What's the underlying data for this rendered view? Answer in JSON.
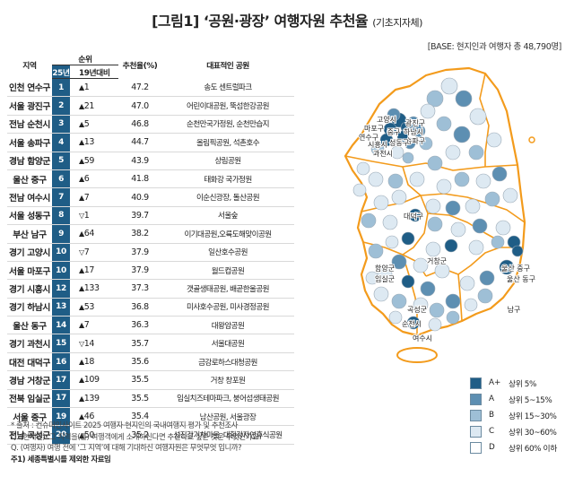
{
  "title": "[그림1] ‘공원·광장’ 여행자원 추천율",
  "title_sub": "(기초지자체)",
  "base": "[BASE: 현지인과 여행자 총 48,790명]",
  "colors": {
    "A_plus": "#1f5d86",
    "A": "#5d8fb2",
    "B": "#9ebfd6",
    "C": "#dde9f2",
    "D": "#ffffff",
    "province_border": "#f39b1c",
    "rank_bg": "#1f5d86"
  },
  "chart_data": {
    "type": "table",
    "columns": {
      "region": "지역",
      "rank_group": "순위",
      "rank_25": "25년",
      "change_19": "19년대비",
      "rate": "추천율(%)",
      "spot": "대표적인 공원"
    },
    "rows": [
      {
        "region": "인천 연수구",
        "rank": "1",
        "change": "1",
        "dir": "up",
        "rate": "47.2",
        "spot": "송도 센트럴파크"
      },
      {
        "region": "서울 광진구",
        "rank": "2",
        "change": "21",
        "dir": "up",
        "rate": "47.0",
        "spot": "어린이대공원, 뚝섬한강공원"
      },
      {
        "region": "전남 순천시",
        "rank": "3",
        "change": "5",
        "dir": "up",
        "rate": "46.8",
        "spot": "순천만국가정원, 순천만습지"
      },
      {
        "region": "서울 송파구",
        "rank": "4",
        "change": "13",
        "dir": "up",
        "rate": "44.7",
        "spot": "올림픽공원, 석촌호수"
      },
      {
        "region": "경남 함양군",
        "rank": "5",
        "change": "59",
        "dir": "up",
        "rate": "43.9",
        "spot": "상림공원"
      },
      {
        "region": "울산 중구",
        "rank": "6",
        "change": "6",
        "dir": "up",
        "rate": "41.8",
        "spot": "태화강 국가정원"
      },
      {
        "region": "전남 여수시",
        "rank": "7",
        "change": "7",
        "dir": "up",
        "rate": "40.9",
        "spot": "이순신광장, 돌산공원"
      },
      {
        "region": "서울 성동구",
        "rank": "8",
        "change": "1",
        "dir": "down",
        "rate": "39.7",
        "spot": "서울숲"
      },
      {
        "region": "부산 남구",
        "rank": "9",
        "change": "64",
        "dir": "up",
        "rate": "38.2",
        "spot": "이기대공원,오륙도해맞이공원"
      },
      {
        "region": "경기 고양시",
        "rank": "10",
        "change": "7",
        "dir": "down",
        "rate": "37.9",
        "spot": "일산호수공원"
      },
      {
        "region": "서울 마포구",
        "rank": "10",
        "change": "17",
        "dir": "up",
        "rate": "37.9",
        "spot": "월드컵공원"
      },
      {
        "region": "경기 시흥시",
        "rank": "12",
        "change": "133",
        "dir": "up",
        "rate": "37.3",
        "spot": "갯골생태공원, 배곧한울공원"
      },
      {
        "region": "경기 하남시",
        "rank": "13",
        "change": "53",
        "dir": "up",
        "rate": "36.8",
        "spot": "미사호수공원, 미사경정공원"
      },
      {
        "region": "울산 동구",
        "rank": "14",
        "change": "7",
        "dir": "up",
        "rate": "36.3",
        "spot": "대왕암공원"
      },
      {
        "region": "경기 과천시",
        "rank": "15",
        "change": "14",
        "dir": "down",
        "rate": "35.7",
        "spot": "서울대공원"
      },
      {
        "region": "대전 대덕구",
        "rank": "16",
        "change": "18",
        "dir": "up",
        "rate": "35.6",
        "spot": "금강로하스대청공원"
      },
      {
        "region": "경남 거창군",
        "rank": "17",
        "change": "109",
        "dir": "up",
        "rate": "35.5",
        "spot": "거창 창포원"
      },
      {
        "region": "전북 임실군",
        "rank": "17",
        "change": "139",
        "dir": "up",
        "rate": "35.5",
        "spot": "임실치즈테마파크, 붕어섬생태공원"
      },
      {
        "region": "서울 중구",
        "rank": "19",
        "change": "46",
        "dir": "up",
        "rate": "35.4",
        "spot": "남산공원, 서울광장"
      },
      {
        "region": "전남 곡성군",
        "rank": "20",
        "change": "50",
        "dir": "up",
        "rate": "35.2",
        "spot": "섬진강기차마을, 대황강자연휴식공원"
      }
    ],
    "legend": [
      {
        "code": "A+",
        "label": "상위 5%",
        "color": "#1f5d86"
      },
      {
        "code": "A",
        "label": "상위 5~15%",
        "color": "#5d8fb2"
      },
      {
        "code": "B",
        "label": "상위 15~30%",
        "color": "#9ebfd6"
      },
      {
        "code": "C",
        "label": "상위 30~60%",
        "color": "#dde9f2"
      },
      {
        "code": "D",
        "label": "상위 60% 이하",
        "color": "#ffffff"
      }
    ]
  },
  "map_labels": [
    "고양시",
    "마포구",
    "중구",
    "연수구",
    "시흥시",
    "과천시",
    "하남시",
    "광진구",
    "송파구",
    "성동구",
    "대덕구",
    "임실군",
    "함양군",
    "거창군",
    "곡성군",
    "순천시",
    "여수시",
    "울산 중구",
    "울산 동구",
    "남구"
  ],
  "notes": [
    "* 출처 : 컨슈머인사이트 2025 여행자·현지인의 국내여행지 평가 및 추천조사",
    "Q. (현지인) ‘그 지역을(를) 여행객에게 소개하신다면 추천하고 싶은 것은 무엇인가요?",
    "Q. (여행자) 여행 전에 ‘그 지역’에 대해 기대하신 여행자원은 무엇무엇 입니까?"
  ],
  "footnote": "주1) 세종특별시를 제외한 자료임"
}
